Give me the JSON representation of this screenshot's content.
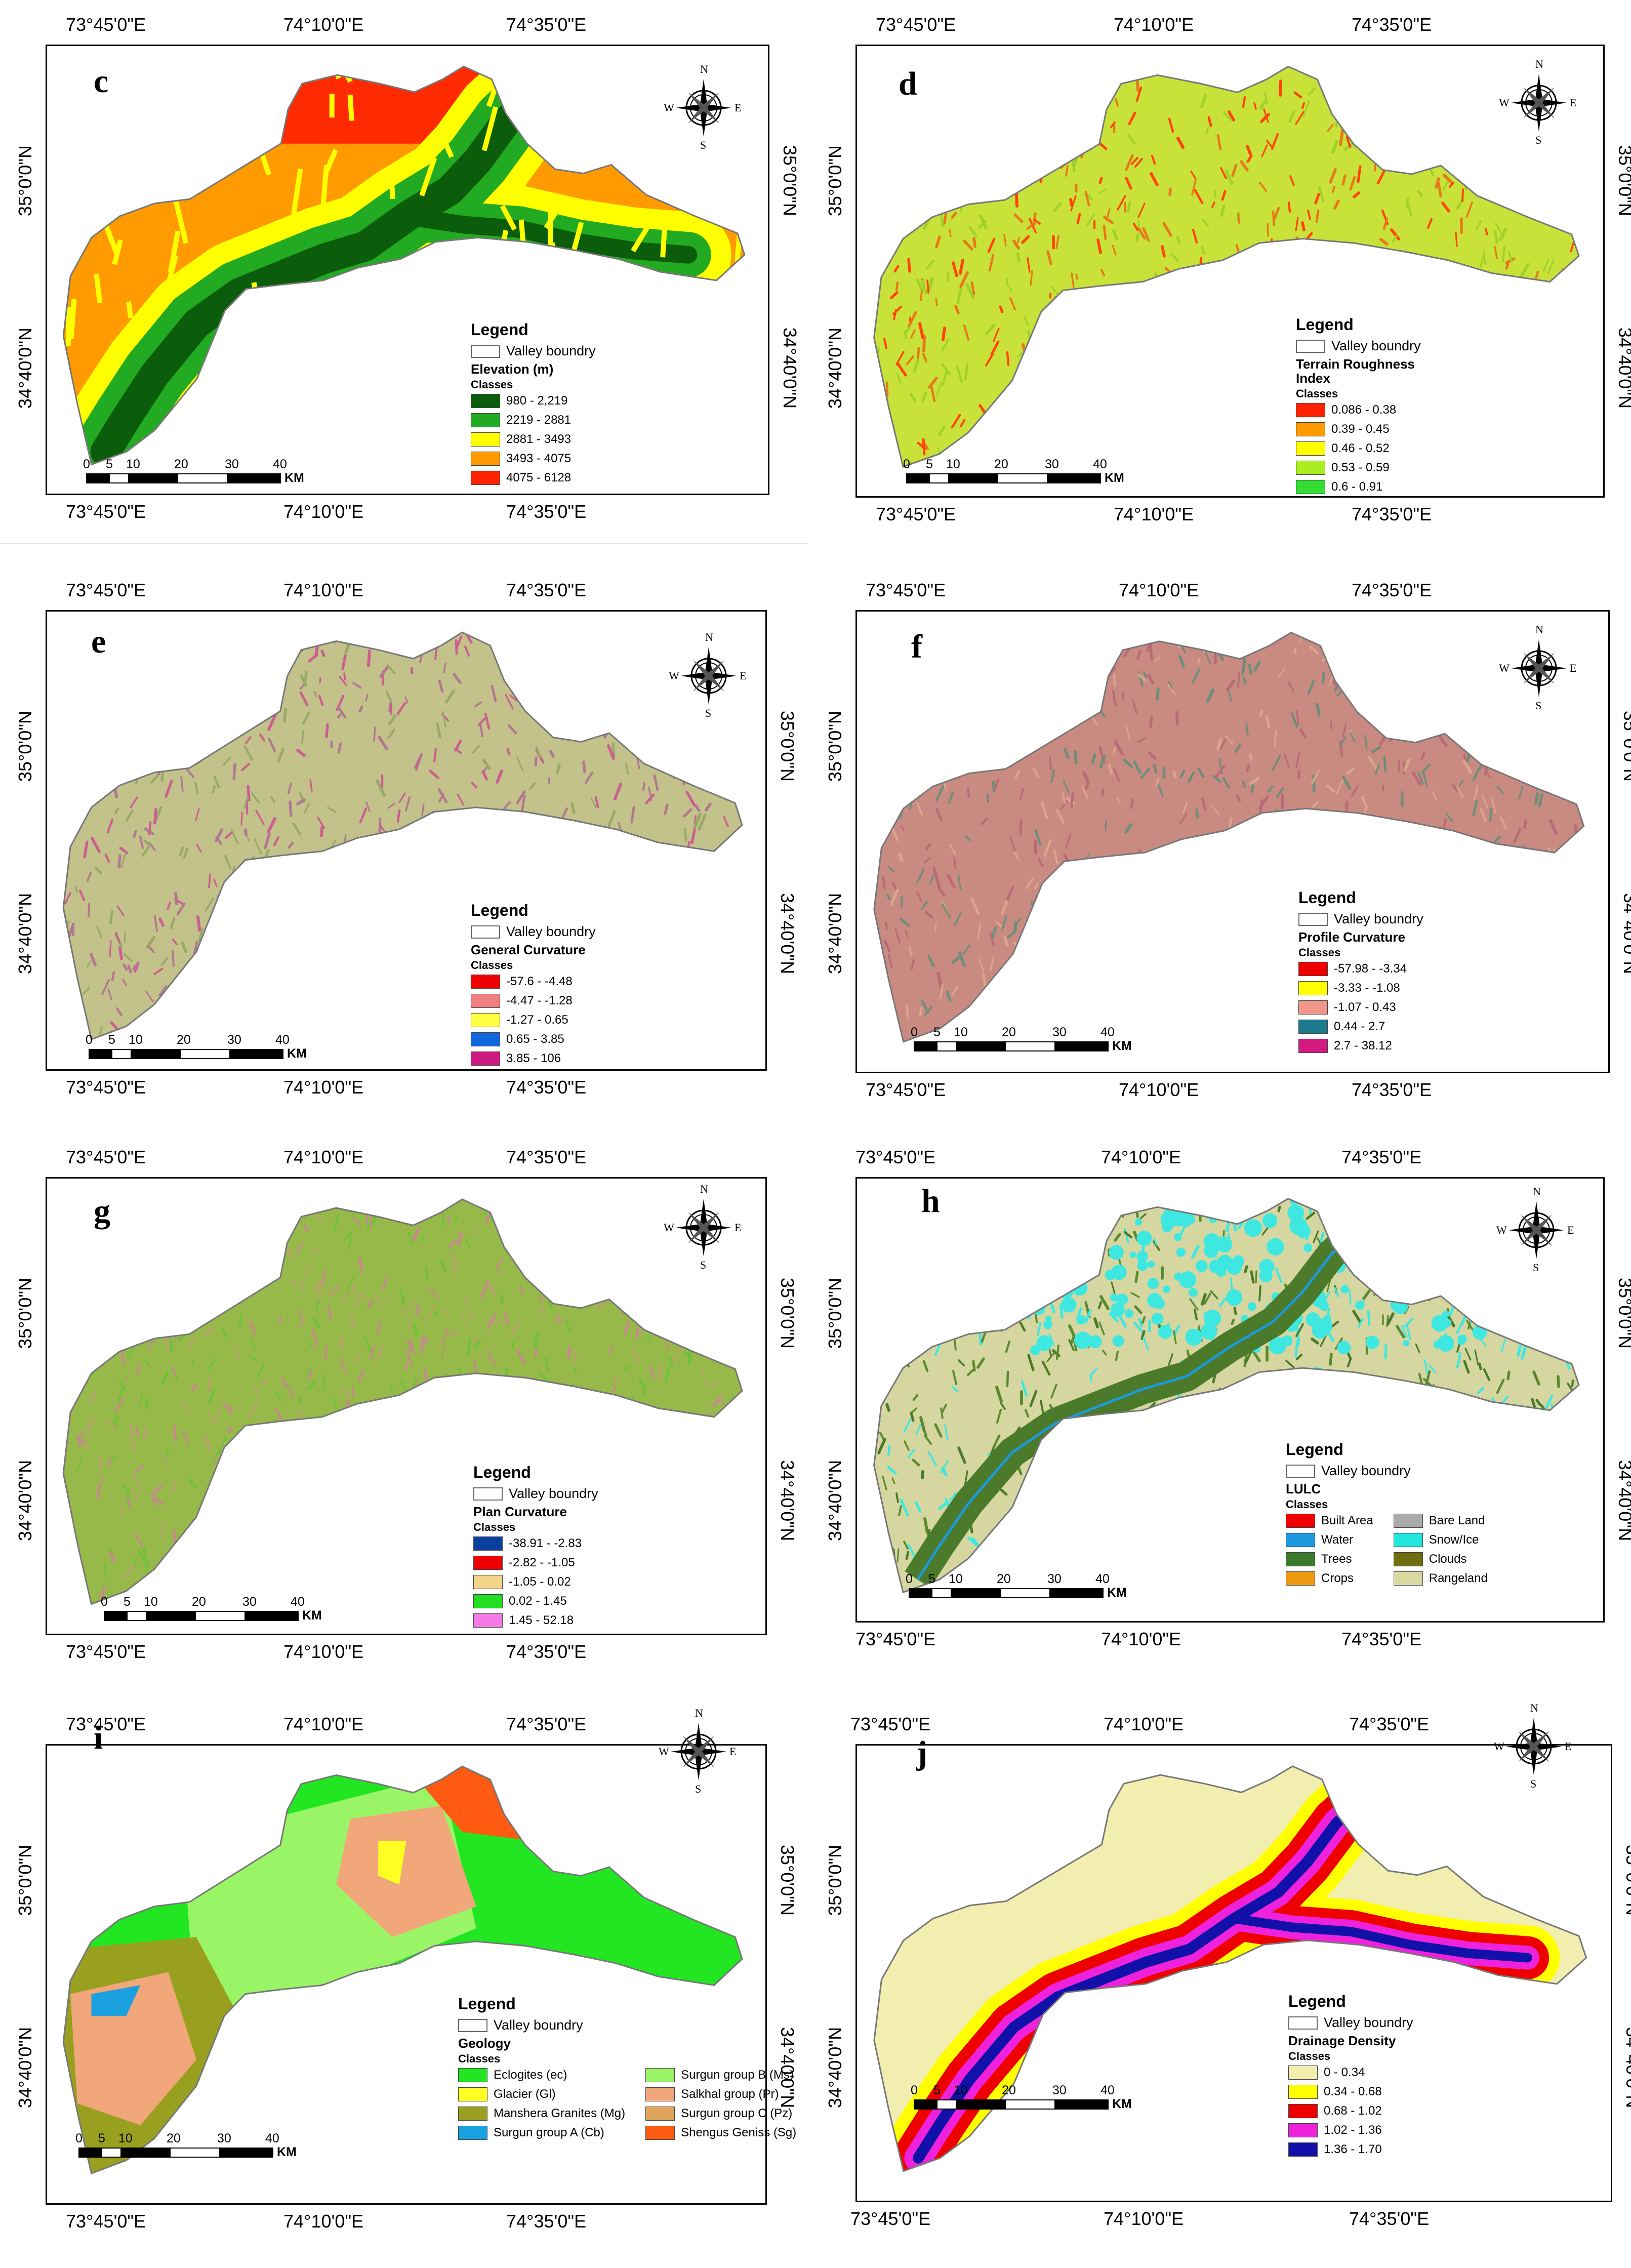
{
  "coords": {
    "lon": [
      "73°45'0\"E",
      "74°10'0\"E",
      "74°35'0\"E"
    ],
    "lat": [
      "35°0'0\"N",
      "34°40'0\"N"
    ]
  },
  "compass": {
    "n": "N",
    "s": "S",
    "e": "E",
    "w": "W"
  },
  "scale": {
    "ticks": [
      "0",
      "5",
      "10",
      "20",
      "30",
      "40"
    ],
    "unit": "KM"
  },
  "legend_title": "Legend",
  "valley_label": "Valley boundry",
  "classes_label": "Classes",
  "panels": [
    {
      "id": "c",
      "label": "c",
      "variable": "Elevation (m)",
      "base": "#1d7a1d",
      "texture": [
        "#2db52d",
        "#ffff00",
        "#ff9a00",
        "#ff2a00"
      ],
      "classes": [
        {
          "label": "980 - 2,219",
          "color": "#0b5d0b"
        },
        {
          "label": "2219 - 2881",
          "color": "#22aa22"
        },
        {
          "label": "2881 - 3493",
          "color": "#ffff00"
        },
        {
          "label": "3493 - 4075",
          "color": "#ff9900"
        },
        {
          "label": "4075 - 6128",
          "color": "#ff2200"
        }
      ]
    },
    {
      "id": "d",
      "label": "d",
      "variable": "Terrain Roughness Index",
      "base": "#c8e23a",
      "texture": [
        "#e57a1a",
        "#ff4400",
        "#9fd12a"
      ],
      "classes": [
        {
          "label": "0.086 - 0.38",
          "color": "#ff2200"
        },
        {
          "label": "0.39 - 0.45",
          "color": "#ff9900"
        },
        {
          "label": "0.46 - 0.52",
          "color": "#ffff00"
        },
        {
          "label": "0.53 - 0.59",
          "color": "#aaee22"
        },
        {
          "label": "0.6 - 0.91",
          "color": "#33dd33"
        }
      ]
    },
    {
      "id": "e",
      "label": "e",
      "variable": "General Curvature",
      "base": "#c2c28a",
      "texture": [
        "#cc5f8f",
        "#9aa86a",
        "#b3788f"
      ],
      "classes": [
        {
          "label": "-57.6 - -4.48",
          "color": "#ee0000"
        },
        {
          "label": "-4.47 - -1.28",
          "color": "#f08080"
        },
        {
          "label": "-1.27 - 0.65",
          "color": "#ffff44"
        },
        {
          "label": "0.65 - 3.85",
          "color": "#1166dd"
        },
        {
          "label": "3.85 - 106",
          "color": "#cc1a80"
        }
      ]
    },
    {
      "id": "f",
      "label": "f",
      "variable": "Profile Curvature",
      "base": "#c98a82",
      "texture": [
        "#6f8e7a",
        "#b86a76",
        "#d9a58c"
      ],
      "classes": [
        {
          "label": "-57.98 - -3.34",
          "color": "#ee0000"
        },
        {
          "label": "-3.33 - -1.08",
          "color": "#ffff00"
        },
        {
          "label": "-1.07 - 0.43",
          "color": "#f2958a"
        },
        {
          "label": "0.44 - 2.7",
          "color": "#1c7a8e"
        },
        {
          "label": "2.7 - 38.12",
          "color": "#d41a80"
        }
      ]
    },
    {
      "id": "g",
      "label": "g",
      "variable": "Plan Curvature",
      "base": "#97b94a",
      "texture": [
        "#c58a8a",
        "#6fc13a",
        "#b5a46a"
      ],
      "classes": [
        {
          "label": "-38.91 - -2.83",
          "color": "#0a3fa0"
        },
        {
          "label": "-2.82 - -1.05",
          "color": "#ee0000"
        },
        {
          "label": "-1.05 - 0.02",
          "color": "#f5d58a"
        },
        {
          "label": "0.02 - 1.45",
          "color": "#22dd22"
        },
        {
          "label": "1.45 - 52.18",
          "color": "#f57ae6"
        }
      ]
    },
    {
      "id": "h",
      "label": "h",
      "variable": "LULC",
      "base": "#d6d6a0",
      "texture": [
        "#4a7a2a",
        "#3ee8e0",
        "#5a8a30"
      ],
      "two_col": true,
      "classes": [
        {
          "label": "Built Area",
          "color": "#ee0000"
        },
        {
          "label": "Bare Land",
          "color": "#aaaaaa"
        },
        {
          "label": "Water",
          "color": "#1b9ae0"
        },
        {
          "label": "Snow/Ice",
          "color": "#22e6dd"
        },
        {
          "label": "Trees",
          "color": "#3a7a2a"
        },
        {
          "label": "Clouds",
          "color": "#6e6e10"
        },
        {
          "label": "Crops",
          "color": "#ee9a11"
        },
        {
          "label": "Rangeland",
          "color": "#d9d9a0"
        }
      ]
    },
    {
      "id": "i",
      "label": "i",
      "variable": "Geology",
      "base": "#22e622",
      "texture": [
        "#99f566",
        "#f2a77a",
        "#99a020"
      ],
      "two_col": true,
      "classes": [
        {
          "label": "Eclogites (ec)",
          "color": "#22e622"
        },
        {
          "label": "Surgun group B (Ms)",
          "color": "#99f566"
        },
        {
          "label": "Glacier (Gl)",
          "color": "#ffff22"
        },
        {
          "label": "Salkhal group (Pr)",
          "color": "#f2a77a"
        },
        {
          "label": "Manshera Granites (Mg)",
          "color": "#99a020"
        },
        {
          "label": "Surgun group C (Pz)",
          "color": "#e0a55a"
        },
        {
          "label": "Surgun group A (Cb)",
          "color": "#1ba0e0"
        },
        {
          "label": "Shengus Geniss (Sg)",
          "color": "#ff5a11"
        }
      ]
    },
    {
      "id": "j",
      "label": "j",
      "variable": "Drainage Density",
      "base": "#f2eeb0",
      "texture": [],
      "classes": [
        {
          "label": "0 - 0.34",
          "color": "#f2eeb0"
        },
        {
          "label": "0.34 - 0.68",
          "color": "#ffff00"
        },
        {
          "label": "0.68 - 1.02",
          "color": "#ee0000"
        },
        {
          "label": "1.02 - 1.36",
          "color": "#ee22dd"
        },
        {
          "label": "1.36 - 1.70",
          "color": "#1111aa"
        }
      ]
    }
  ]
}
